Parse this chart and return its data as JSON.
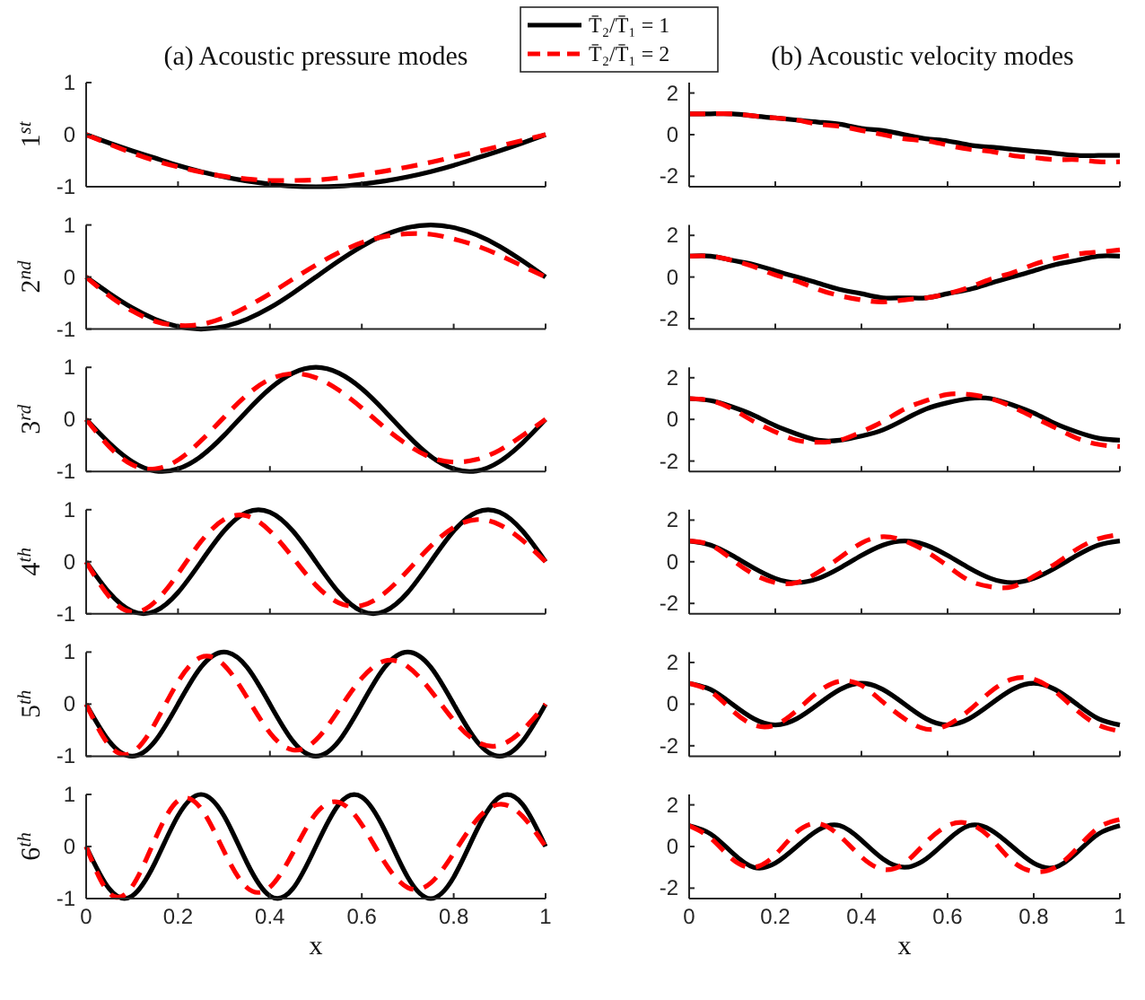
{
  "chart_data": [
    {
      "type": "line",
      "title": "(a) Acoustic pressure modes",
      "ylabel": "1$^{st}$",
      "xlim": [
        0,
        1
      ],
      "xticks": [
        0,
        0.2,
        0.4,
        0.6,
        0.8,
        1
      ],
      "ylim": [
        -1,
        1
      ],
      "yticks": [
        -1,
        0,
        1
      ],
      "tick_labels": "y",
      "grid": false,
      "legend": "top right",
      "x": [
        0,
        0.05,
        0.1,
        0.15,
        0.2,
        0.25,
        0.3,
        0.35,
        0.4,
        0.45,
        0.5,
        0.55,
        0.6,
        0.65,
        0.7,
        0.75,
        0.8,
        0.85,
        0.9,
        0.95,
        1
      ],
      "series": [
        {
          "name": "T̄₂/T̄₁ = 1",
          "color": "#000000",
          "line_style": "solid",
          "values": [
            0,
            -0.16,
            -0.31,
            -0.45,
            -0.59,
            -0.71,
            -0.81,
            -0.89,
            -0.95,
            -0.99,
            -1,
            -0.99,
            -0.95,
            -0.89,
            -0.81,
            -0.71,
            -0.59,
            -0.45,
            -0.31,
            -0.16,
            0
          ]
        },
        {
          "name": "T̄₂/T̄₁ = 2",
          "color": "#ff0000",
          "line_style": "dashed",
          "values": [
            0,
            -0.18,
            -0.35,
            -0.5,
            -0.62,
            -0.72,
            -0.8,
            -0.85,
            -0.88,
            -0.88,
            -0.87,
            -0.83,
            -0.77,
            -0.7,
            -0.62,
            -0.53,
            -0.43,
            -0.33,
            -0.22,
            -0.11,
            0
          ]
        }
      ]
    },
    {
      "type": "line",
      "title": "(b) Acoustic velocity modes",
      "xlim": [
        0,
        1
      ],
      "xticks": [
        0,
        0.2,
        0.4,
        0.6,
        0.8,
        1
      ],
      "ylim": [
        -2.5,
        2.5
      ],
      "yticks": [
        -2,
        0,
        2
      ],
      "tick_labels": "y",
      "grid": false,
      "x": [
        0,
        0.05,
        0.1,
        0.15,
        0.2,
        0.25,
        0.3,
        0.35,
        0.4,
        0.45,
        0.5,
        0.55,
        0.6,
        0.65,
        0.7,
        0.75,
        0.8,
        0.85,
        0.9,
        0.95,
        1
      ],
      "series": [
        {
          "color": "#000000",
          "line_style": "solid",
          "values": [
            1,
            1,
            1,
            0.9,
            0.8,
            0.7,
            0.6,
            0.5,
            0.3,
            0.2,
            0,
            -0.2,
            -0.3,
            -0.5,
            -0.6,
            -0.7,
            -0.8,
            -0.9,
            -1,
            -1,
            -1
          ]
        },
        {
          "color": "#ff0000",
          "line_style": "dashed",
          "values": [
            1,
            1,
            1,
            0.9,
            0.8,
            0.7,
            0.5,
            0.4,
            0.2,
            0,
            -0.2,
            -0.3,
            -0.5,
            -0.7,
            -0.8,
            -1,
            -1.1,
            -1.2,
            -1.2,
            -1.3,
            -1.3
          ]
        }
      ]
    },
    {
      "type": "line",
      "ylabel": "2$^{nd}$",
      "xlim": [
        0,
        1
      ],
      "xticks": [
        0,
        0.2,
        0.4,
        0.6,
        0.8,
        1
      ],
      "ylim": [
        -1,
        1
      ],
      "yticks": [
        -1,
        0,
        1
      ],
      "tick_labels": "y",
      "grid": false,
      "x": [
        0,
        0.05,
        0.1,
        0.15,
        0.2,
        0.25,
        0.3,
        0.35,
        0.4,
        0.45,
        0.5,
        0.55,
        0.6,
        0.65,
        0.7,
        0.75,
        0.8,
        0.85,
        0.9,
        0.95,
        1
      ],
      "series": [
        {
          "color": "#000000",
          "line_style": "solid",
          "values": [
            0,
            -0.31,
            -0.59,
            -0.81,
            -0.95,
            -1,
            -0.95,
            -0.81,
            -0.59,
            -0.31,
            0,
            0.31,
            0.59,
            0.81,
            0.95,
            1,
            0.95,
            0.81,
            0.59,
            0.31,
            0
          ]
        },
        {
          "color": "#ff0000",
          "line_style": "dashed",
          "values": [
            0,
            -0.36,
            -0.65,
            -0.85,
            -0.93,
            -0.91,
            -0.78,
            -0.57,
            -0.32,
            -0.04,
            0.23,
            0.47,
            0.66,
            0.78,
            0.83,
            0.82,
            0.73,
            0.6,
            0.42,
            0.21,
            0
          ]
        }
      ]
    },
    {
      "type": "line",
      "xlim": [
        0,
        1
      ],
      "xticks": [
        0,
        0.2,
        0.4,
        0.6,
        0.8,
        1
      ],
      "ylim": [
        -2.5,
        2.5
      ],
      "yticks": [
        -2,
        0,
        2
      ],
      "tick_labels": "y",
      "grid": false,
      "x": [
        0,
        0.05,
        0.1,
        0.15,
        0.2,
        0.25,
        0.3,
        0.35,
        0.4,
        0.45,
        0.5,
        0.55,
        0.6,
        0.65,
        0.7,
        0.75,
        0.8,
        0.85,
        0.9,
        0.95,
        1
      ],
      "series": [
        {
          "color": "#000000",
          "line_style": "solid",
          "values": [
            1,
            1,
            0.8,
            0.6,
            0.3,
            0,
            -0.3,
            -0.6,
            -0.8,
            -1,
            -1,
            -1,
            -0.8,
            -0.6,
            -0.3,
            0,
            0.3,
            0.6,
            0.8,
            1,
            1
          ]
        },
        {
          "color": "#ff0000",
          "line_style": "dashed",
          "values": [
            1,
            1,
            0.8,
            0.5,
            0.1,
            -0.2,
            -0.6,
            -0.9,
            -1.1,
            -1.2,
            -1.1,
            -1,
            -0.8,
            -0.5,
            -0.1,
            0.2,
            0.6,
            0.9,
            1.1,
            1.2,
            1.3
          ]
        }
      ]
    },
    {
      "type": "line",
      "ylabel": "3$^{rd}$",
      "xlim": [
        0,
        1
      ],
      "xticks": [
        0,
        0.2,
        0.4,
        0.6,
        0.8,
        1
      ],
      "ylim": [
        -1,
        1
      ],
      "yticks": [
        -1,
        0,
        1
      ],
      "tick_labels": "y",
      "grid": false,
      "x": [
        0,
        0.05,
        0.1,
        0.15,
        0.2,
        0.25,
        0.3,
        0.35,
        0.4,
        0.45,
        0.5,
        0.55,
        0.6,
        0.65,
        0.7,
        0.75,
        0.8,
        0.85,
        0.9,
        0.95,
        1
      ],
      "series": [
        {
          "color": "#000000",
          "line_style": "solid",
          "values": [
            0,
            -0.45,
            -0.81,
            -0.99,
            -0.95,
            -0.71,
            -0.31,
            0.16,
            0.59,
            0.89,
            1,
            0.89,
            0.59,
            0.16,
            -0.31,
            -0.71,
            -0.95,
            -0.99,
            -0.81,
            -0.45,
            0
          ]
        },
        {
          "color": "#ff0000",
          "line_style": "dashed",
          "values": [
            0,
            -0.52,
            -0.87,
            -0.95,
            -0.78,
            -0.41,
            0.04,
            0.47,
            0.77,
            0.88,
            0.8,
            0.56,
            0.22,
            -0.16,
            -0.49,
            -0.73,
            -0.82,
            -0.77,
            -0.59,
            -0.31,
            0
          ]
        }
      ]
    },
    {
      "type": "line",
      "xlim": [
        0,
        1
      ],
      "xticks": [
        0,
        0.2,
        0.4,
        0.6,
        0.8,
        1
      ],
      "ylim": [
        -2.5,
        2.5
      ],
      "yticks": [
        -2,
        0,
        2
      ],
      "tick_labels": "y",
      "grid": false,
      "x": [
        0,
        0.05,
        0.1,
        0.15,
        0.2,
        0.25,
        0.3,
        0.35,
        0.4,
        0.45,
        0.5,
        0.55,
        0.6,
        0.65,
        0.7,
        0.75,
        0.8,
        0.85,
        0.9,
        0.95,
        1
      ],
      "series": [
        {
          "color": "#000000",
          "line_style": "solid",
          "values": [
            1,
            0.9,
            0.6,
            0.2,
            -0.3,
            -0.7,
            -1,
            -1,
            -0.8,
            -0.5,
            0,
            0.5,
            0.8,
            1,
            1,
            0.7,
            0.3,
            -0.2,
            -0.6,
            -0.9,
            -1
          ]
        },
        {
          "color": "#ff0000",
          "line_style": "dashed",
          "values": [
            1,
            0.9,
            0.5,
            -0.1,
            -0.6,
            -1,
            -1.1,
            -1,
            -0.6,
            -0.1,
            0.5,
            0.9,
            1.2,
            1.2,
            1,
            0.6,
            0.1,
            -0.4,
            -0.9,
            -1.2,
            -1.3
          ]
        }
      ]
    },
    {
      "type": "line",
      "ylabel": "4$^{th}$",
      "xlim": [
        0,
        1
      ],
      "xticks": [
        0,
        0.2,
        0.4,
        0.6,
        0.8,
        1
      ],
      "ylim": [
        -1,
        1
      ],
      "yticks": [
        -1,
        0,
        1
      ],
      "tick_labels": "y",
      "grid": false,
      "x": [
        0,
        0.05,
        0.1,
        0.15,
        0.2,
        0.25,
        0.3,
        0.35,
        0.4,
        0.45,
        0.5,
        0.55,
        0.6,
        0.65,
        0.7,
        0.75,
        0.8,
        0.85,
        0.9,
        0.95,
        1
      ],
      "series": [
        {
          "color": "#000000",
          "line_style": "solid",
          "values": [
            0,
            -0.59,
            -0.95,
            -0.95,
            -0.59,
            0,
            0.59,
            0.95,
            0.95,
            0.59,
            0,
            -0.59,
            -0.95,
            -0.95,
            -0.59,
            0,
            0.59,
            0.95,
            0.95,
            0.59,
            0
          ]
        },
        {
          "color": "#ff0000",
          "line_style": "dashed",
          "values": [
            0,
            -0.67,
            -0.97,
            -0.77,
            -0.23,
            0.39,
            0.81,
            0.88,
            0.59,
            0.08,
            -0.45,
            -0.79,
            -0.84,
            -0.6,
            -0.17,
            0.3,
            0.66,
            0.81,
            0.71,
            0.41,
            0
          ]
        }
      ]
    },
    {
      "type": "line",
      "xlim": [
        0,
        1
      ],
      "xticks": [
        0,
        0.2,
        0.4,
        0.6,
        0.8,
        1
      ],
      "ylim": [
        -2.5,
        2.5
      ],
      "yticks": [
        -2,
        0,
        2
      ],
      "tick_labels": "y",
      "grid": false,
      "x": [
        0,
        0.05,
        0.1,
        0.15,
        0.2,
        0.25,
        0.3,
        0.35,
        0.4,
        0.45,
        0.5,
        0.55,
        0.6,
        0.65,
        0.7,
        0.75,
        0.8,
        0.85,
        0.9,
        0.95,
        1
      ],
      "series": [
        {
          "color": "#000000",
          "line_style": "solid",
          "values": [
            1,
            0.8,
            0.3,
            -0.3,
            -0.8,
            -1,
            -0.8,
            -0.3,
            0.3,
            0.8,
            1,
            0.8,
            0.3,
            -0.3,
            -0.8,
            -1,
            -0.8,
            -0.3,
            0.3,
            0.8,
            1
          ]
        },
        {
          "color": "#ff0000",
          "line_style": "dashed",
          "values": [
            1,
            0.8,
            0.1,
            -0.6,
            -1,
            -1,
            -0.5,
            0.2,
            0.9,
            1.2,
            1,
            0.5,
            -0.2,
            -0.9,
            -1.2,
            -1.2,
            -0.7,
            -0.1,
            0.6,
            1.1,
            1.3
          ]
        }
      ]
    },
    {
      "type": "line",
      "ylabel": "5$^{th}$",
      "xlim": [
        0,
        1
      ],
      "xticks": [
        0,
        0.2,
        0.4,
        0.6,
        0.8,
        1
      ],
      "ylim": [
        -1,
        1
      ],
      "yticks": [
        -1,
        0,
        1
      ],
      "tick_labels": "y",
      "grid": false,
      "x": [
        0,
        0.05,
        0.1,
        0.15,
        0.2,
        0.25,
        0.3,
        0.35,
        0.4,
        0.45,
        0.5,
        0.55,
        0.6,
        0.65,
        0.7,
        0.75,
        0.8,
        0.85,
        0.9,
        0.95,
        1
      ],
      "series": [
        {
          "color": "#000000",
          "line_style": "solid",
          "values": [
            0,
            -0.71,
            -1,
            -0.71,
            0,
            0.71,
            1,
            0.71,
            0,
            -0.71,
            -1,
            -0.71,
            0,
            0.71,
            1,
            0.71,
            0,
            -0.71,
            -1,
            -0.71,
            0
          ]
        },
        {
          "color": "#ff0000",
          "line_style": "dashed",
          "values": [
            0,
            -0.79,
            -0.93,
            -0.37,
            0.43,
            0.9,
            0.75,
            0.13,
            -0.55,
            -0.88,
            -0.69,
            -0.11,
            0.5,
            0.83,
            0.72,
            0.26,
            -0.31,
            -0.72,
            -0.79,
            -0.5,
            0
          ]
        }
      ]
    },
    {
      "type": "line",
      "xlim": [
        0,
        1
      ],
      "xticks": [
        0,
        0.2,
        0.4,
        0.6,
        0.8,
        1
      ],
      "ylim": [
        -2.5,
        2.5
      ],
      "yticks": [
        -2,
        0,
        2
      ],
      "tick_labels": "y",
      "grid": false,
      "x": [
        0,
        0.05,
        0.1,
        0.15,
        0.2,
        0.25,
        0.3,
        0.35,
        0.4,
        0.45,
        0.5,
        0.55,
        0.6,
        0.65,
        0.7,
        0.75,
        0.8,
        0.85,
        0.9,
        0.95,
        1
      ],
      "series": [
        {
          "color": "#000000",
          "line_style": "solid",
          "values": [
            1,
            0.7,
            0,
            -0.7,
            -1,
            -0.7,
            0,
            0.7,
            1,
            0.7,
            0,
            -0.7,
            -1,
            -0.7,
            0,
            0.7,
            1,
            0.7,
            0,
            -0.7,
            -1
          ]
        },
        {
          "color": "#ff0000",
          "line_style": "dashed",
          "values": [
            1,
            0.6,
            -0.3,
            -1,
            -1,
            -0.3,
            0.6,
            1.1,
            0.9,
            0.1,
            -0.7,
            -1.2,
            -1,
            -0.3,
            0.6,
            1.2,
            1.2,
            0.6,
            -0.3,
            -1,
            -1.3
          ]
        }
      ]
    },
    {
      "type": "line",
      "ylabel": "6$^{th}$",
      "xlabel": "x",
      "xlim": [
        0,
        1
      ],
      "xticks": [
        0,
        0.2,
        0.4,
        0.6,
        0.8,
        1
      ],
      "ylim": [
        -1,
        1
      ],
      "yticks": [
        -1,
        0,
        1
      ],
      "grid": false,
      "x": [
        0,
        0.05,
        0.1,
        0.15,
        0.2,
        0.25,
        0.3,
        0.35,
        0.4,
        0.45,
        0.5,
        0.55,
        0.6,
        0.65,
        0.7,
        0.75,
        0.8,
        0.85,
        0.9,
        0.95,
        1
      ],
      "series": [
        {
          "color": "#000000",
          "line_style": "solid",
          "values": [
            0,
            -0.81,
            -0.95,
            -0.31,
            0.59,
            1,
            0.59,
            -0.31,
            -0.95,
            -0.81,
            0,
            0.81,
            0.95,
            0.31,
            -0.59,
            -1,
            -0.59,
            0.31,
            0.95,
            0.81,
            0
          ]
        },
        {
          "color": "#ff0000",
          "line_style": "dashed",
          "values": [
            0,
            -0.89,
            -0.77,
            0.14,
            0.88,
            0.73,
            -0.09,
            -0.79,
            -0.78,
            -0.12,
            0.63,
            0.85,
            0.42,
            -0.31,
            -0.79,
            -0.7,
            -0.13,
            0.51,
            0.81,
            0.58,
            0
          ]
        }
      ]
    },
    {
      "type": "line",
      "xlabel": "x",
      "xlim": [
        0,
        1
      ],
      "xticks": [
        0,
        0.2,
        0.4,
        0.6,
        0.8,
        1
      ],
      "ylim": [
        -2.5,
        2.5
      ],
      "yticks": [
        -2,
        0,
        2
      ],
      "grid": false,
      "x": [
        0,
        0.05,
        0.1,
        0.15,
        0.2,
        0.25,
        0.3,
        0.35,
        0.4,
        0.45,
        0.5,
        0.55,
        0.6,
        0.65,
        0.7,
        0.75,
        0.8,
        0.85,
        0.9,
        0.95,
        1
      ],
      "series": [
        {
          "color": "#000000",
          "line_style": "solid",
          "values": [
            1,
            0.6,
            -0.3,
            -1,
            -0.8,
            0,
            0.8,
            1,
            0.3,
            -0.6,
            -1,
            -0.6,
            0.3,
            1,
            0.8,
            0,
            -0.8,
            -1,
            -0.3,
            0.6,
            1
          ]
        },
        {
          "color": "#ff0000",
          "line_style": "dashed",
          "values": [
            1,
            0.4,
            -0.6,
            -1,
            -0.4,
            0.7,
            1.1,
            0.5,
            -0.5,
            -1.1,
            -0.8,
            0.2,
            1,
            1.1,
            0.4,
            -0.7,
            -1.2,
            -1,
            -0.1,
            0.9,
            1.3
          ]
        }
      ]
    }
  ]
}
